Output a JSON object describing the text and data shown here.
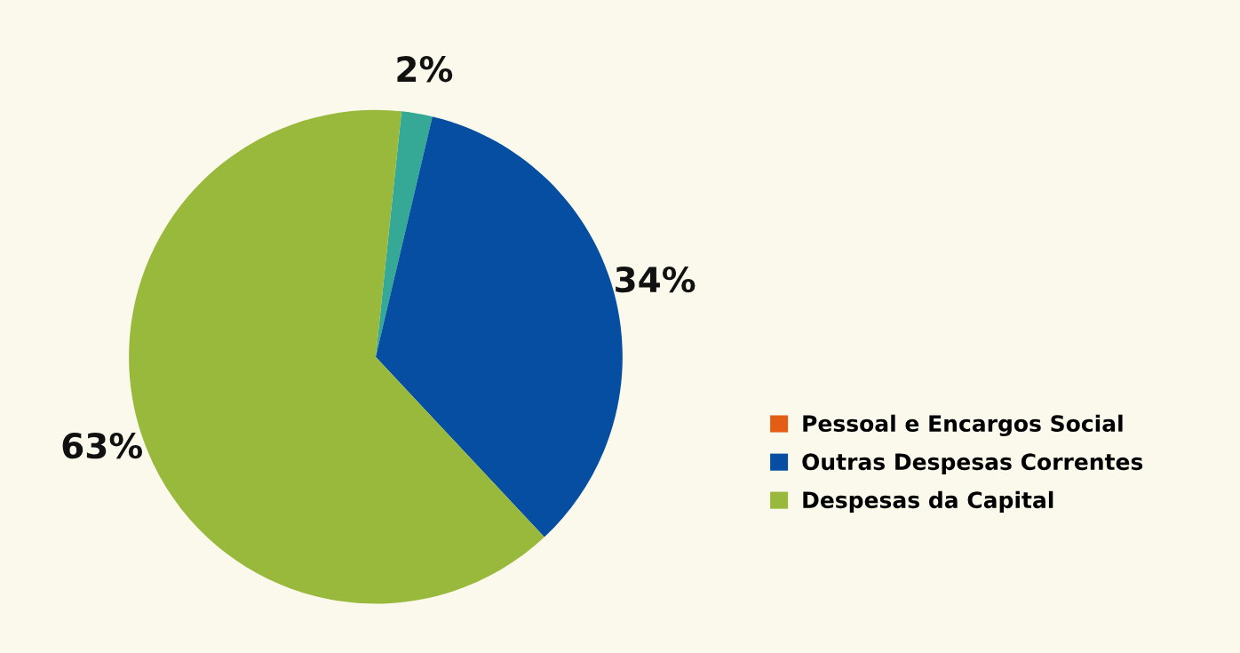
{
  "chart_data": {
    "type": "pie",
    "categories": [
      "Pessoal e Encargos Social",
      null,
      "Outras Despesas Correntes",
      "Despesas da Capital"
    ],
    "values": [
      0,
      2,
      34,
      63
    ],
    "colors": [
      "#e35d14",
      "#36a896",
      "#054ea1",
      "#99b93d"
    ],
    "value_labels": [
      null,
      "2%",
      "34%",
      "63%"
    ],
    "legend": "right"
  }
}
